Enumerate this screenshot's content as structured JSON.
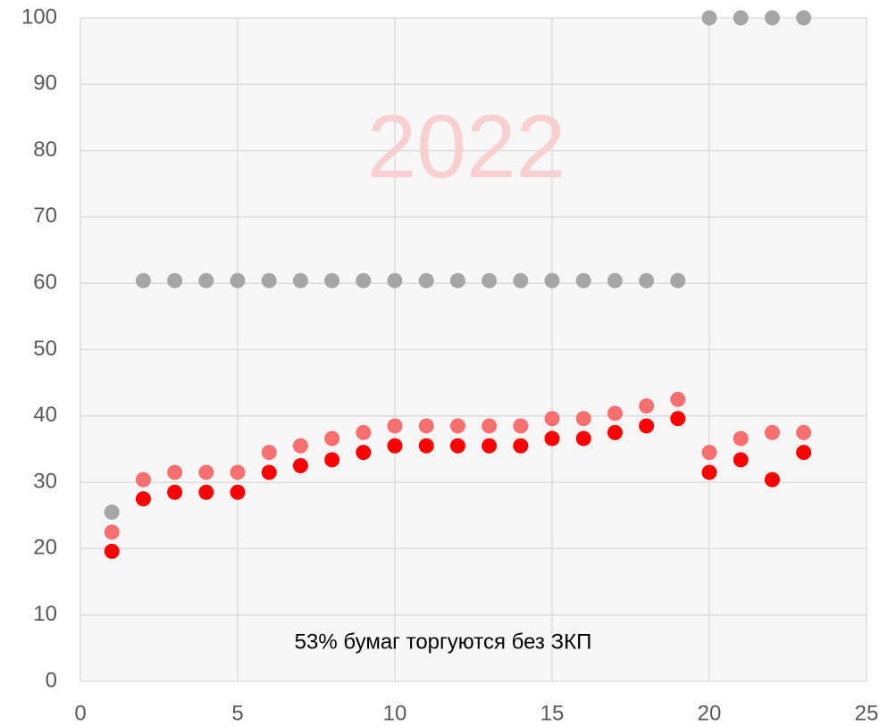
{
  "chart_data": {
    "type": "scatter",
    "annotations": [
      "2022",
      "53% бумаг торгуются без ЗКП"
    ],
    "xlim": [
      0,
      25
    ],
    "xticks": [
      0,
      5,
      10,
      15,
      20,
      25
    ],
    "ylim": [
      0,
      100
    ],
    "yticks": [
      0,
      10,
      20,
      30,
      40,
      50,
      60,
      70,
      80,
      90,
      100
    ],
    "grid": true,
    "series": [
      {
        "color": "#a6a6a6",
        "x": [
          1,
          2,
          3,
          4,
          5,
          6,
          7,
          8,
          9,
          10,
          11,
          12,
          13,
          14,
          15,
          16,
          17,
          18,
          19,
          20,
          21,
          22,
          23
        ],
        "values": [
          25.5,
          60.4,
          60.4,
          60.4,
          60.4,
          60.4,
          60.4,
          60.4,
          60.4,
          60.4,
          60.4,
          60.4,
          60.4,
          60.4,
          60.4,
          60.4,
          60.4,
          60.4,
          60.4,
          100,
          100,
          100,
          100
        ]
      },
      {
        "color": "#f86f6f",
        "x": [
          1,
          2,
          3,
          4,
          5,
          6,
          7,
          8,
          9,
          10,
          11,
          12,
          13,
          14,
          15,
          16,
          17,
          18,
          19,
          20,
          21,
          22,
          23
        ],
        "values": [
          22.5,
          30.4,
          31.5,
          31.5,
          31.5,
          34.5,
          35.5,
          36.6,
          37.5,
          38.5,
          38.5,
          38.5,
          38.5,
          38.5,
          39.6,
          39.6,
          40.4,
          41.5,
          42.5,
          34.5,
          36.6,
          37.5,
          37.5
        ]
      },
      {
        "color": "#ff0000",
        "x": [
          1,
          2,
          3,
          4,
          5,
          6,
          7,
          8,
          9,
          10,
          11,
          12,
          13,
          14,
          15,
          16,
          17,
          18,
          19,
          20,
          21,
          22,
          23
        ],
        "values": [
          19.6,
          27.5,
          28.5,
          28.5,
          28.5,
          31.5,
          32.5,
          33.4,
          34.5,
          35.5,
          35.5,
          35.5,
          35.5,
          35.5,
          36.6,
          36.6,
          37.5,
          38.5,
          39.6,
          31.5,
          33.4,
          30.4,
          34.5
        ]
      }
    ]
  }
}
